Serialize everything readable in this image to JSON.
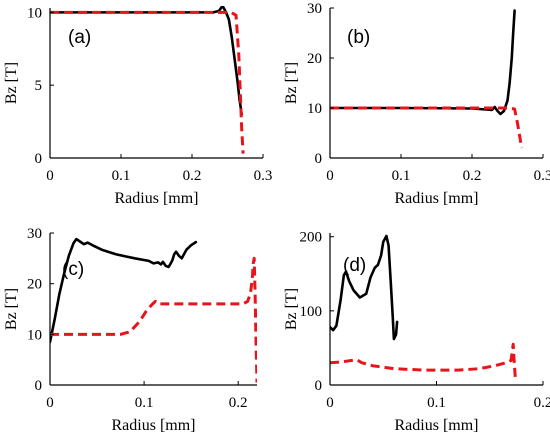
{
  "chart_data": [
    {
      "type": "line",
      "panel_label": "(a)",
      "xlabel": "Radius [mm]",
      "ylabel": "Bz [T]",
      "xlim": [
        0,
        0.3
      ],
      "ylim": [
        0,
        10.3
      ],
      "xticks": [
        0,
        0.1,
        0.2,
        0.3
      ],
      "xtick_labels": [
        "0",
        "0.1",
        "0.2",
        "0.3"
      ],
      "yticks": [
        0,
        5,
        10
      ],
      "ytick_labels": [
        "0",
        "5",
        "10"
      ],
      "series": [
        {
          "style": "solid",
          "color": "#000000",
          "points": [
            [
              0,
              10
            ],
            [
              0.05,
              10
            ],
            [
              0.1,
              10
            ],
            [
              0.15,
              10
            ],
            [
              0.2,
              10
            ],
            [
              0.23,
              10
            ],
            [
              0.238,
              10.1
            ],
            [
              0.243,
              10.45
            ],
            [
              0.248,
              10.0
            ],
            [
              0.252,
              9.5
            ],
            [
              0.256,
              8.3
            ],
            [
              0.26,
              6.8
            ],
            [
              0.264,
              5.3
            ],
            [
              0.267,
              4.0
            ],
            [
              0.27,
              3.0
            ]
          ]
        },
        {
          "style": "dashed",
          "color": "#e8141b",
          "points": [
            [
              0,
              10
            ],
            [
              0.1,
              10
            ],
            [
              0.2,
              10
            ],
            [
              0.255,
              10
            ],
            [
              0.262,
              9.8
            ],
            [
              0.266,
              7.0
            ],
            [
              0.268,
              4.5
            ],
            [
              0.27,
              2.0
            ],
            [
              0.272,
              0.3
            ]
          ]
        }
      ]
    },
    {
      "type": "line",
      "panel_label": "(b)",
      "xlabel": "Radius [mm]",
      "ylabel": "Bz [T]",
      "xlim": [
        0,
        0.3
      ],
      "ylim": [
        0,
        30
      ],
      "xticks": [
        0,
        0.1,
        0.2,
        0.3
      ],
      "xtick_labels": [
        "0",
        "0.1",
        "0.2",
        "0.3"
      ],
      "yticks": [
        0,
        10,
        20,
        30
      ],
      "ytick_labels": [
        "0",
        "10",
        "20",
        "30"
      ],
      "series": [
        {
          "style": "solid",
          "color": "#000000",
          "points": [
            [
              0,
              10
            ],
            [
              0.1,
              10
            ],
            [
              0.2,
              9.9
            ],
            [
              0.22,
              9.7
            ],
            [
              0.228,
              9.6
            ],
            [
              0.232,
              10.2
            ],
            [
              0.236,
              9.4
            ],
            [
              0.24,
              8.8
            ],
            [
              0.245,
              9.4
            ],
            [
              0.25,
              11.5
            ],
            [
              0.253,
              15.0
            ],
            [
              0.256,
              20.0
            ],
            [
              0.258,
              25.0
            ],
            [
              0.26,
              29.5
            ]
          ]
        },
        {
          "style": "dashed",
          "color": "#e8141b",
          "points": [
            [
              0,
              10
            ],
            [
              0.1,
              10
            ],
            [
              0.2,
              10
            ],
            [
              0.25,
              10
            ],
            [
              0.26,
              9.8
            ],
            [
              0.264,
              7.0
            ],
            [
              0.267,
              4.5
            ],
            [
              0.27,
              2.0
            ]
          ]
        }
      ]
    },
    {
      "type": "line",
      "panel_label": "(c)",
      "xlabel": "Radius [mm]",
      "ylabel": "Bz [T]",
      "xlim": [
        0,
        0.22
      ],
      "ylim": [
        0,
        30
      ],
      "xticks": [
        0,
        0.1,
        0.2
      ],
      "xtick_labels": [
        "0",
        "0.1",
        "0.2"
      ],
      "yticks": [
        0,
        10,
        20,
        30
      ],
      "ytick_labels": [
        "0",
        "10",
        "20",
        "30"
      ],
      "series": [
        {
          "style": "solid",
          "color": "#000000",
          "points": [
            [
              0,
              8.5
            ],
            [
              0.005,
              13
            ],
            [
              0.01,
              18
            ],
            [
              0.015,
              22
            ],
            [
              0.02,
              25.5
            ],
            [
              0.025,
              28
            ],
            [
              0.028,
              28.8
            ],
            [
              0.032,
              28.3
            ],
            [
              0.036,
              27.8
            ],
            [
              0.04,
              28.1
            ],
            [
              0.045,
              27.6
            ],
            [
              0.055,
              26.7
            ],
            [
              0.07,
              25.8
            ],
            [
              0.09,
              25.0
            ],
            [
              0.105,
              24.5
            ],
            [
              0.11,
              24.0
            ],
            [
              0.115,
              24.2
            ],
            [
              0.118,
              23.8
            ],
            [
              0.12,
              24.3
            ],
            [
              0.123,
              23.5
            ],
            [
              0.126,
              23.3
            ],
            [
              0.128,
              23.9
            ],
            [
              0.13,
              24.6
            ],
            [
              0.132,
              25.8
            ],
            [
              0.134,
              26.3
            ],
            [
              0.137,
              25.5
            ],
            [
              0.14,
              25.0
            ],
            [
              0.145,
              26.7
            ],
            [
              0.15,
              27.6
            ],
            [
              0.155,
              28.2
            ]
          ]
        },
        {
          "style": "dashed",
          "color": "#e8141b",
          "points": [
            [
              0,
              10
            ],
            [
              0.02,
              10
            ],
            [
              0.05,
              10
            ],
            [
              0.075,
              10
            ],
            [
              0.085,
              10.5
            ],
            [
              0.095,
              12.5
            ],
            [
              0.102,
              14.5
            ],
            [
              0.108,
              15.8
            ],
            [
              0.112,
              16.5
            ],
            [
              0.115,
              16.0
            ],
            [
              0.125,
              16.0
            ],
            [
              0.15,
              16.0
            ],
            [
              0.18,
              16.0
            ],
            [
              0.205,
              16.0
            ],
            [
              0.21,
              16.5
            ],
            [
              0.213,
              18.0
            ],
            [
              0.215,
              21.0
            ],
            [
              0.216,
              24.0
            ],
            [
              0.217,
              25.0
            ],
            [
              0.218,
              18.0
            ],
            [
              0.219,
              8.0
            ],
            [
              0.22,
              0.5
            ]
          ]
        }
      ]
    },
    {
      "type": "line",
      "panel_label": "(d)",
      "xlabel": "Radius [mm]",
      "ylabel": "Bz [T]",
      "xlim": [
        0,
        0.2
      ],
      "ylim": [
        0,
        205
      ],
      "xticks": [
        0,
        0.1,
        0.2
      ],
      "xtick_labels": [
        "0",
        "0.1",
        "0.2"
      ],
      "yticks": [
        0,
        100,
        200
      ],
      "ytick_labels": [
        "0",
        "100",
        "200"
      ],
      "series": [
        {
          "style": "solid",
          "color": "#000000",
          "points": [
            [
              0,
              78
            ],
            [
              0.003,
              74
            ],
            [
              0.006,
              80
            ],
            [
              0.01,
              115
            ],
            [
              0.013,
              148
            ],
            [
              0.015,
              153
            ],
            [
              0.018,
              140
            ],
            [
              0.022,
              128
            ],
            [
              0.028,
              118
            ],
            [
              0.034,
              123
            ],
            [
              0.038,
              145
            ],
            [
              0.042,
              158
            ],
            [
              0.045,
              162
            ],
            [
              0.048,
              175
            ],
            [
              0.05,
              193
            ],
            [
              0.053,
              201
            ],
            [
              0.055,
              188
            ],
            [
              0.057,
              140
            ],
            [
              0.059,
              90
            ],
            [
              0.06,
              62
            ],
            [
              0.062,
              68
            ],
            [
              0.063,
              85
            ]
          ]
        },
        {
          "style": "dashed",
          "color": "#e8141b",
          "points": [
            [
              0,
              30
            ],
            [
              0.01,
              31
            ],
            [
              0.02,
              33
            ],
            [
              0.025,
              34
            ],
            [
              0.03,
              30
            ],
            [
              0.04,
              26
            ],
            [
              0.06,
              22
            ],
            [
              0.09,
              20
            ],
            [
              0.12,
              20
            ],
            [
              0.14,
              22
            ],
            [
              0.155,
              26
            ],
            [
              0.165,
              30
            ],
            [
              0.17,
              33
            ],
            [
              0.172,
              55
            ],
            [
              0.173,
              30
            ],
            [
              0.174,
              10
            ]
          ]
        }
      ]
    }
  ]
}
